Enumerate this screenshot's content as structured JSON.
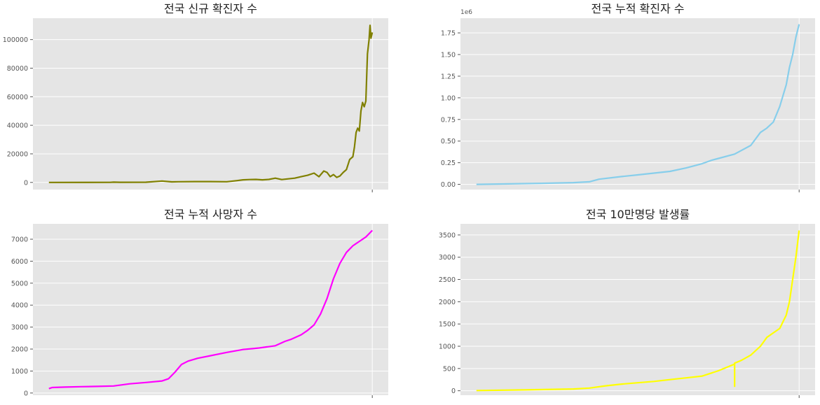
{
  "chart_data": [
    {
      "type": "line",
      "title": "전국 신규 확진자 수",
      "color": "#808000",
      "ylim": [
        -5000,
        115000
      ],
      "yticks": [
        0,
        20000,
        40000,
        60000,
        80000,
        100000
      ],
      "ytick_labels": [
        "0",
        "20000",
        "40000",
        "60000",
        "80000",
        "100000"
      ],
      "y_offset_label": "",
      "grid": true,
      "series": [
        {
          "x": [
            0,
            0.19,
            0.2,
            0.22,
            0.3,
            0.35,
            0.37,
            0.38,
            0.4,
            0.45,
            0.5,
            0.55,
            0.58,
            0.6,
            0.62,
            0.64,
            0.66,
            0.68,
            0.7,
            0.72,
            0.74,
            0.76,
            0.78,
            0.8,
            0.82,
            0.835,
            0.85,
            0.86,
            0.87,
            0.88,
            0.89,
            0.9,
            0.91,
            0.92,
            0.93,
            0.94,
            0.945,
            0.95,
            0.955,
            0.96,
            0.965,
            0.97,
            0.975,
            0.98,
            0.985,
            0.99,
            0.993,
            0.996,
            1.0
          ],
          "y": [
            20,
            30,
            200,
            100,
            150,
            1000,
            600,
            400,
            500,
            600,
            600,
            500,
            1200,
            1800,
            2000,
            2100,
            1800,
            2100,
            3000,
            2000,
            2500,
            3000,
            4000,
            5000,
            6500,
            4000,
            8000,
            7000,
            4000,
            5500,
            3500,
            4500,
            7000,
            9000,
            16000,
            18000,
            25000,
            35000,
            38000,
            36000,
            50000,
            56000,
            53000,
            57000,
            90000,
            100000,
            110000,
            101000,
            105000
          ]
        }
      ]
    },
    {
      "type": "line",
      "title": "전국 누적 확진자 수",
      "color": "#87ceeb",
      "ylim": [
        -0.06,
        1.92
      ],
      "yticks": [
        0,
        0.25,
        0.5,
        0.75,
        1.0,
        1.25,
        1.5,
        1.75
      ],
      "ytick_labels": [
        "0.00",
        "0.25",
        "0.50",
        "0.75",
        "1.00",
        "1.25",
        "1.50",
        "1.75"
      ],
      "y_offset_label": "1e6",
      "grid": true,
      "series": [
        {
          "x": [
            0,
            0.2,
            0.3,
            0.35,
            0.38,
            0.45,
            0.5,
            0.55,
            0.6,
            0.65,
            0.7,
            0.73,
            0.75,
            0.8,
            0.85,
            0.88,
            0.9,
            0.92,
            0.94,
            0.96,
            0.97,
            0.98,
            0.99,
            1.0
          ],
          "y": [
            0.0,
            0.012,
            0.02,
            0.03,
            0.06,
            0.09,
            0.11,
            0.13,
            0.15,
            0.19,
            0.24,
            0.28,
            0.3,
            0.35,
            0.45,
            0.6,
            0.65,
            0.72,
            0.9,
            1.15,
            1.35,
            1.5,
            1.7,
            1.85
          ]
        }
      ]
    },
    {
      "type": "line",
      "title": "전국 누적 사망자 수",
      "color": "#ff00ff",
      "ylim": [
        -100,
        7700
      ],
      "yticks": [
        0,
        1000,
        2000,
        3000,
        4000,
        5000,
        6000,
        7000
      ],
      "ytick_labels": [
        "0",
        "1000",
        "2000",
        "3000",
        "4000",
        "5000",
        "6000",
        "7000"
      ],
      "y_offset_label": "",
      "grid": true,
      "series": [
        {
          "x": [
            0,
            0.01,
            0.05,
            0.1,
            0.15,
            0.2,
            0.25,
            0.3,
            0.35,
            0.37,
            0.39,
            0.41,
            0.43,
            0.46,
            0.5,
            0.55,
            0.6,
            0.65,
            0.7,
            0.73,
            0.75,
            0.78,
            0.8,
            0.82,
            0.84,
            0.86,
            0.88,
            0.9,
            0.92,
            0.94,
            0.96,
            0.98,
            1.0
          ],
          "y": [
            200,
            250,
            270,
            290,
            300,
            320,
            420,
            480,
            550,
            650,
            950,
            1300,
            1450,
            1580,
            1700,
            1850,
            1980,
            2050,
            2150,
            2350,
            2450,
            2650,
            2850,
            3100,
            3600,
            4300,
            5200,
            5900,
            6400,
            6700,
            6900,
            7100,
            7400
          ]
        }
      ]
    },
    {
      "type": "line",
      "title": "전국 10만명당 발생률",
      "color": "#ffff00",
      "ylim": [
        -100,
        3750
      ],
      "yticks": [
        0,
        500,
        1000,
        1500,
        2000,
        2500,
        3000,
        3500
      ],
      "ytick_labels": [
        "0",
        "500",
        "1000",
        "1500",
        "2000",
        "2500",
        "3000",
        "3500"
      ],
      "y_offset_label": "",
      "grid": true,
      "series": [
        {
          "x": [
            0,
            0.15,
            0.3,
            0.35,
            0.4,
            0.45,
            0.5,
            0.55,
            0.6,
            0.65,
            0.7,
            0.75,
            0.8,
            0.8001,
            0.8002,
            0.82,
            0.85,
            0.88,
            0.9,
            0.92,
            0.94,
            0.96,
            0.97,
            0.98,
            0.99,
            1.0
          ],
          "y": [
            5,
            20,
            40,
            60,
            110,
            150,
            180,
            210,
            250,
            290,
            330,
            450,
            600,
            100,
            620,
            680,
            800,
            1000,
            1200,
            1300,
            1400,
            1700,
            2000,
            2500,
            3000,
            3600
          ]
        }
      ]
    }
  ]
}
